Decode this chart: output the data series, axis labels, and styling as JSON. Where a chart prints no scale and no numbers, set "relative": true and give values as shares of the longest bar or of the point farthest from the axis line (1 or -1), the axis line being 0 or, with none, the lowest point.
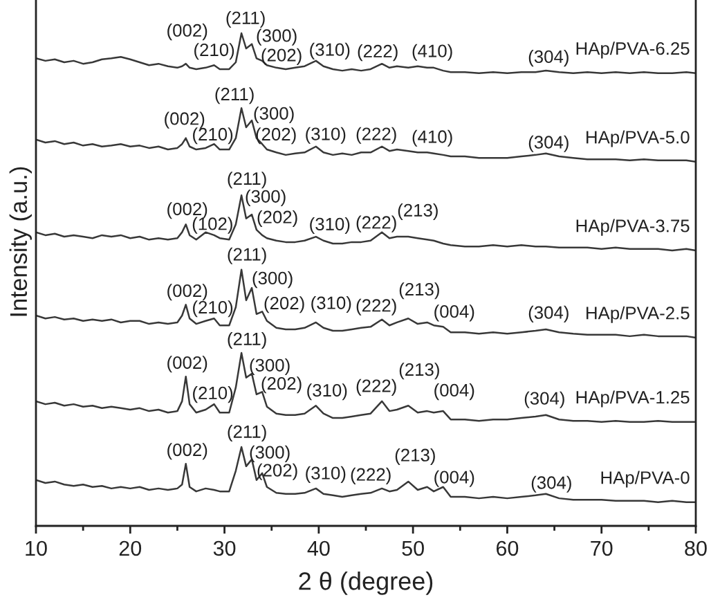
{
  "chart_data": {
    "type": "line",
    "relative": true,
    "xlabel": "2 θ (degree)",
    "ylabel": "Intensity (a.u.)",
    "xlim": [
      10,
      80
    ],
    "xticks": [
      10,
      {
        "value": 15,
        "label": null
      },
      20,
      {
        "value": 25,
        "label": null
      },
      30,
      {
        "value": 35,
        "label": null
      },
      40,
      {
        "value": 45,
        "label": null
      },
      50,
      {
        "value": 55,
        "label": null
      },
      60,
      {
        "value": 65,
        "label": null
      },
      70,
      {
        "value": 75,
        "label": null
      },
      80
    ],
    "line_style": "solid",
    "x": [
      10,
      11,
      12,
      13,
      14,
      15,
      16,
      17,
      18,
      19,
      20,
      21,
      22,
      23,
      24,
      25,
      25.5,
      25.9,
      26.3,
      27,
      28,
      28.9,
      29.5,
      30.5,
      31.2,
      31.8,
      32.3,
      32.9,
      33.4,
      34.0,
      34.5,
      35.5,
      36.5,
      37.5,
      38.5,
      39.7,
      40.5,
      41.5,
      42.5,
      43.5,
      44.5,
      45.5,
      46.7,
      47.5,
      48.3,
      49.5,
      50.5,
      51.5,
      52.2,
      53.2,
      54,
      55.5,
      57,
      58.5,
      60,
      61.5,
      63,
      64.1,
      65.5,
      67,
      68.5,
      70,
      71.5,
      73,
      74.5,
      76,
      77.5,
      79,
      80
    ],
    "series": [
      {
        "name": "HAp/PVA-6.25",
        "color": "#383838",
        "values": [
          0.949,
          0.944,
          0.947,
          0.941,
          0.944,
          0.938,
          0.941,
          0.947,
          0.949,
          0.952,
          0.947,
          0.941,
          0.935,
          0.938,
          0.933,
          0.93,
          0.933,
          0.938,
          0.93,
          0.927,
          0.93,
          0.935,
          0.927,
          0.927,
          0.941,
          1.0,
          0.969,
          0.978,
          0.949,
          0.944,
          0.935,
          0.93,
          0.927,
          0.93,
          0.933,
          0.944,
          0.933,
          0.927,
          0.924,
          0.927,
          0.924,
          0.927,
          0.938,
          0.93,
          0.933,
          0.93,
          0.933,
          0.93,
          0.93,
          0.924,
          0.921,
          0.921,
          0.919,
          0.921,
          0.919,
          0.921,
          0.921,
          0.924,
          0.921,
          0.919,
          0.921,
          0.919,
          0.921,
          0.919,
          0.921,
          0.919,
          0.919,
          0.921,
          0.919
        ]
      },
      {
        "name": "HAp/PVA-5.0",
        "color": "#383838",
        "values": [
          0.784,
          0.778,
          0.781,
          0.775,
          0.778,
          0.772,
          0.775,
          0.77,
          0.772,
          0.775,
          0.77,
          0.772,
          0.767,
          0.77,
          0.764,
          0.767,
          0.775,
          0.787,
          0.77,
          0.764,
          0.767,
          0.775,
          0.764,
          0.764,
          0.787,
          0.848,
          0.809,
          0.823,
          0.787,
          0.775,
          0.764,
          0.758,
          0.753,
          0.756,
          0.758,
          0.77,
          0.758,
          0.753,
          0.756,
          0.753,
          0.758,
          0.758,
          0.77,
          0.761,
          0.764,
          0.761,
          0.758,
          0.758,
          0.756,
          0.753,
          0.75,
          0.75,
          0.747,
          0.747,
          0.747,
          0.75,
          0.753,
          0.756,
          0.75,
          0.747,
          0.744,
          0.744,
          0.744,
          0.742,
          0.744,
          0.742,
          0.742,
          0.742,
          0.739
        ]
      },
      {
        "name": "HAp/PVA-3.75",
        "color": "#383838",
        "values": [
          0.596,
          0.59,
          0.593,
          0.587,
          0.59,
          0.587,
          0.584,
          0.59,
          0.587,
          0.59,
          0.584,
          0.587,
          0.581,
          0.584,
          0.581,
          0.584,
          0.596,
          0.612,
          0.59,
          0.581,
          0.596,
          0.59,
          0.584,
          0.581,
          0.612,
          0.671,
          0.624,
          0.632,
          0.601,
          0.59,
          0.584,
          0.579,
          0.576,
          0.576,
          0.579,
          0.587,
          0.579,
          0.573,
          0.573,
          0.576,
          0.576,
          0.579,
          0.596,
          0.584,
          0.587,
          0.587,
          0.584,
          0.581,
          0.579,
          0.573,
          0.57,
          0.567,
          0.567,
          0.57,
          0.567,
          0.57,
          0.567,
          0.567,
          0.565,
          0.565,
          0.565,
          0.562,
          0.565,
          0.562,
          0.562,
          0.562,
          0.559,
          0.562,
          0.559
        ]
      },
      {
        "name": "HAp/PVA-2.5",
        "color": "#383838",
        "values": [
          0.427,
          0.421,
          0.424,
          0.419,
          0.421,
          0.416,
          0.419,
          0.416,
          0.419,
          0.413,
          0.416,
          0.416,
          0.41,
          0.413,
          0.41,
          0.413,
          0.427,
          0.449,
          0.421,
          0.41,
          0.416,
          0.421,
          0.407,
          0.407,
          0.444,
          0.52,
          0.458,
          0.483,
          0.43,
          0.435,
          0.416,
          0.402,
          0.399,
          0.399,
          0.402,
          0.413,
          0.402,
          0.396,
          0.396,
          0.399,
          0.402,
          0.404,
          0.419,
          0.407,
          0.413,
          0.421,
          0.41,
          0.413,
          0.407,
          0.404,
          0.393,
          0.393,
          0.39,
          0.393,
          0.39,
          0.393,
          0.396,
          0.399,
          0.393,
          0.39,
          0.388,
          0.388,
          0.388,
          0.385,
          0.388,
          0.385,
          0.385,
          0.385,
          0.382
        ]
      },
      {
        "name": "HAp/PVA-1.25",
        "color": "#383838",
        "values": [
          0.253,
          0.247,
          0.25,
          0.244,
          0.247,
          0.242,
          0.244,
          0.239,
          0.242,
          0.239,
          0.236,
          0.239,
          0.233,
          0.236,
          0.23,
          0.233,
          0.253,
          0.303,
          0.247,
          0.23,
          0.236,
          0.247,
          0.23,
          0.23,
          0.281,
          0.351,
          0.301,
          0.309,
          0.267,
          0.272,
          0.242,
          0.228,
          0.225,
          0.225,
          0.228,
          0.244,
          0.228,
          0.219,
          0.219,
          0.222,
          0.225,
          0.228,
          0.253,
          0.233,
          0.236,
          0.244,
          0.23,
          0.233,
          0.23,
          0.233,
          0.216,
          0.216,
          0.213,
          0.216,
          0.216,
          0.219,
          0.222,
          0.225,
          0.216,
          0.213,
          0.213,
          0.211,
          0.213,
          0.211,
          0.211,
          0.213,
          0.211,
          0.211,
          0.211
        ]
      },
      {
        "name": "HAp/PVA-0",
        "color": "#383838",
        "values": [
          0.093,
          0.087,
          0.09,
          0.084,
          0.081,
          0.084,
          0.079,
          0.081,
          0.076,
          0.079,
          0.076,
          0.079,
          0.073,
          0.076,
          0.073,
          0.076,
          0.084,
          0.126,
          0.079,
          0.07,
          0.076,
          0.073,
          0.07,
          0.07,
          0.112,
          0.16,
          0.121,
          0.135,
          0.093,
          0.107,
          0.079,
          0.067,
          0.065,
          0.065,
          0.067,
          0.076,
          0.065,
          0.062,
          0.059,
          0.062,
          0.065,
          0.067,
          0.076,
          0.07,
          0.073,
          0.09,
          0.073,
          0.079,
          0.07,
          0.079,
          0.059,
          0.059,
          0.056,
          0.059,
          0.056,
          0.059,
          0.062,
          0.065,
          0.056,
          0.053,
          0.053,
          0.053,
          0.051,
          0.051,
          0.051,
          0.048,
          0.051,
          0.048,
          0.048
        ]
      }
    ],
    "annotations": [
      {
        "text": "(002)",
        "x": 25.9,
        "y": 0.938
      },
      {
        "text": "(211)",
        "x": 31.8,
        "y": 1.0
      },
      {
        "text": "(210)",
        "x": 28.9,
        "y": 0.935
      },
      {
        "text": "(300)",
        "x": 32.9,
        "y": 0.978
      },
      {
        "text": "(202)",
        "x": 34.0,
        "y": 0.944
      },
      {
        "text": "(310)",
        "x": 39.7,
        "y": 0.944
      },
      {
        "text": "(222)",
        "x": 46.7,
        "y": 0.938
      },
      {
        "text": "(410)",
        "x": 52.2,
        "y": 0.93
      },
      {
        "text": "(304)",
        "x": 64.1,
        "y": 0.924
      },
      {
        "text": "(002)",
        "x": 25.9,
        "y": 0.787
      },
      {
        "text": "(211)",
        "x": 31.8,
        "y": 0.848
      },
      {
        "text": "(210)",
        "x": 28.9,
        "y": 0.775
      },
      {
        "text": "(300)",
        "x": 32.9,
        "y": 0.823
      },
      {
        "text": "(202)",
        "x": 34.0,
        "y": 0.775
      },
      {
        "text": "(310)",
        "x": 39.7,
        "y": 0.77
      },
      {
        "text": "(222)",
        "x": 46.7,
        "y": 0.77
      },
      {
        "text": "(410)",
        "x": 52.2,
        "y": 0.756
      },
      {
        "text": "(304)",
        "x": 64.1,
        "y": 0.756
      },
      {
        "text": "(211)",
        "x": 31.8,
        "y": 0.671
      },
      {
        "text": "(300)",
        "x": 32.9,
        "y": 0.632
      },
      {
        "text": "(002)",
        "x": 25.9,
        "y": 0.612
      },
      {
        "text": "(102)",
        "x": 28.0,
        "y": 0.596
      },
      {
        "text": "(202)",
        "x": 34.0,
        "y": 0.59
      },
      {
        "text": "(310)",
        "x": 39.7,
        "y": 0.587
      },
      {
        "text": "(222)",
        "x": 46.7,
        "y": 0.596
      },
      {
        "text": "(213)",
        "x": 49.5,
        "y": 0.587
      },
      {
        "text": "(211)",
        "x": 31.8,
        "y": 0.52
      },
      {
        "text": "(300)",
        "x": 32.9,
        "y": 0.483
      },
      {
        "text": "(002)",
        "x": 25.9,
        "y": 0.449
      },
      {
        "text": "(210)",
        "x": 28.9,
        "y": 0.421
      },
      {
        "text": "(202)",
        "x": 34.0,
        "y": 0.435
      },
      {
        "text": "(310)",
        "x": 39.7,
        "y": 0.413
      },
      {
        "text": "(222)",
        "x": 46.7,
        "y": 0.419
      },
      {
        "text": "(213)",
        "x": 49.5,
        "y": 0.421
      },
      {
        "text": "(004)",
        "x": 53.2,
        "y": 0.404
      },
      {
        "text": "(304)",
        "x": 64.1,
        "y": 0.399
      },
      {
        "text": "(211)",
        "x": 31.8,
        "y": 0.351
      },
      {
        "text": "(300)",
        "x": 32.9,
        "y": 0.309
      },
      {
        "text": "(002)",
        "x": 25.9,
        "y": 0.303
      },
      {
        "text": "(210)",
        "x": 28.9,
        "y": 0.247
      },
      {
        "text": "(202)",
        "x": 34.0,
        "y": 0.272
      },
      {
        "text": "(310)",
        "x": 39.7,
        "y": 0.244
      },
      {
        "text": "(222)",
        "x": 46.7,
        "y": 0.253
      },
      {
        "text": "(213)",
        "x": 49.5,
        "y": 0.244
      },
      {
        "text": "(004)",
        "x": 53.2,
        "y": 0.233
      },
      {
        "text": "(304)",
        "x": 64.1,
        "y": 0.225
      },
      {
        "text": "(002)",
        "x": 25.9,
        "y": 0.126
      },
      {
        "text": "(211)",
        "x": 31.8,
        "y": 0.16
      },
      {
        "text": "(300)",
        "x": 32.9,
        "y": 0.135
      },
      {
        "text": "(202)",
        "x": 34.0,
        "y": 0.107
      },
      {
        "text": "(310)",
        "x": 39.7,
        "y": 0.076
      },
      {
        "text": "(222)",
        "x": 46.7,
        "y": 0.076
      },
      {
        "text": "(213)",
        "x": 49.5,
        "y": 0.09
      },
      {
        "text": "(004)",
        "x": 53.2,
        "y": 0.079
      },
      {
        "text": "(304)",
        "x": 64.1,
        "y": 0.065
      }
    ]
  }
}
